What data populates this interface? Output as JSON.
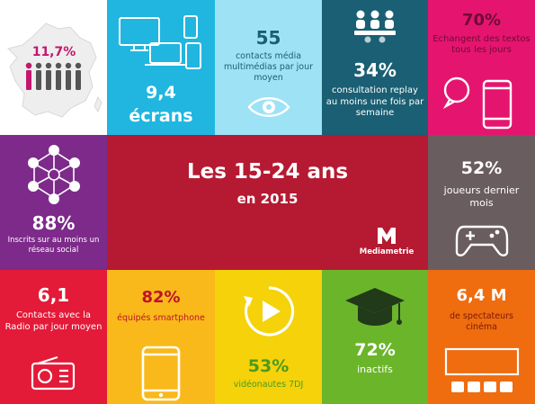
{
  "colors": {
    "cyan": "#20b6e0",
    "light_cyan": "#9ee2f5",
    "teal": "#1a5f73",
    "magenta": "#e5156f",
    "purple": "#7d2a8a",
    "crimson": "#b51a32",
    "gray": "#6a5d5f",
    "red": "#e31a38",
    "orange_light": "#f9b91a",
    "yellow": "#f5d20a",
    "green": "#6bb52b",
    "orange": "#ef6c0f"
  },
  "france": {
    "stat": "11,7%"
  },
  "screens": {
    "value": "9,4",
    "label": "écrans"
  },
  "contacts": {
    "value": "55",
    "label": "contacts média multimédias par jour moyen"
  },
  "replay": {
    "value": "34%",
    "label": "consultation replay au moins une fois par semaine"
  },
  "sms": {
    "value": "70%",
    "label": "Echangent des textos tous les jours"
  },
  "social": {
    "value": "88%",
    "label": "Inscrits sur au moins un réseau social"
  },
  "center": {
    "title": "Les 15-24 ans",
    "subtitle": "en 2015",
    "brand": "Mediametrie"
  },
  "gamers": {
    "value": "52%",
    "label": "joueurs dernier mois"
  },
  "radio": {
    "value": "6,1",
    "label": "Contacts avec la Radio par jour moyen"
  },
  "smartphone": {
    "value": "82%",
    "label": "équipés smartphone"
  },
  "video": {
    "value": "53%",
    "label": "vidéonautes 7DJ"
  },
  "inactive": {
    "value": "72%",
    "label": "inactifs"
  },
  "cinema": {
    "value": "6,4 M",
    "label": "de spectateurs cinéma"
  }
}
